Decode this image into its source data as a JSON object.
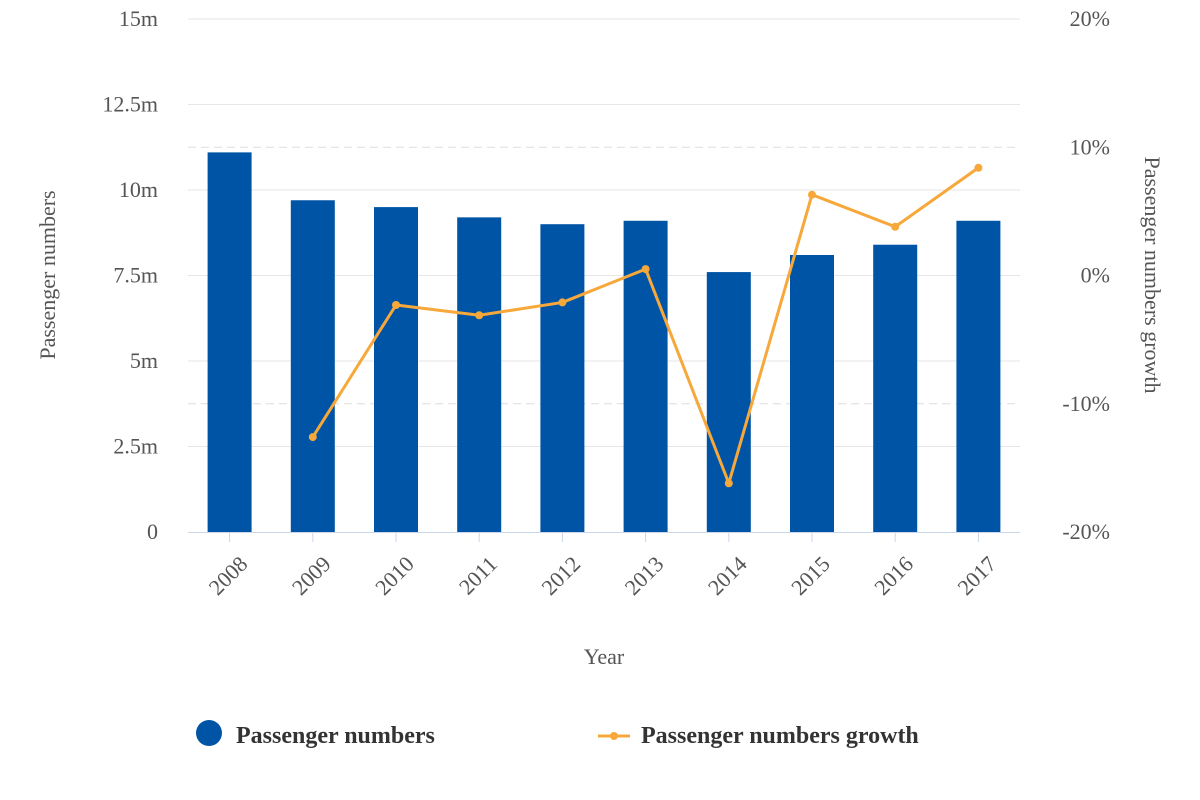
{
  "chart_data": {
    "type": "bar",
    "categories": [
      "2008",
      "2009",
      "2010",
      "2011",
      "2012",
      "2013",
      "2014",
      "2015",
      "2016",
      "2017"
    ],
    "series": [
      {
        "name": "Passenger numbers",
        "type": "bar",
        "axis": "left",
        "color": "#0054a6",
        "values": [
          11.1,
          9.7,
          9.5,
          9.2,
          9.0,
          9.1,
          7.6,
          8.1,
          8.4,
          9.1
        ]
      },
      {
        "name": "Passenger numbers growth",
        "type": "line",
        "axis": "right",
        "color": "#f7a83a",
        "values": [
          null,
          -12.6,
          -2.3,
          -3.1,
          -2.1,
          0.5,
          -16.2,
          6.3,
          3.8,
          8.4
        ]
      }
    ],
    "xlabel": "Year",
    "ylabel": "Passenger numbers",
    "ylabel_right": "Passenger numbers growth",
    "ylim": [
      0,
      15
    ],
    "ylim_right": [
      -20,
      20
    ],
    "yticks": [
      {
        "value": 0,
        "label": "0"
      },
      {
        "value": 2.5,
        "label": "2.5m"
      },
      {
        "value": 5,
        "label": "5m"
      },
      {
        "value": 7.5,
        "label": "7.5m"
      },
      {
        "value": 10,
        "label": "10m"
      },
      {
        "value": 12.5,
        "label": "12.5m"
      },
      {
        "value": 15,
        "label": "15m"
      }
    ],
    "yticks_right": [
      {
        "value": -20,
        "label": "-20%"
      },
      {
        "value": -10,
        "label": "-10%"
      },
      {
        "value": 0,
        "label": "0%"
      },
      {
        "value": 10,
        "label": "10%"
      },
      {
        "value": 20,
        "label": "20%"
      }
    ],
    "grid": true,
    "legend_position": "bottom"
  }
}
